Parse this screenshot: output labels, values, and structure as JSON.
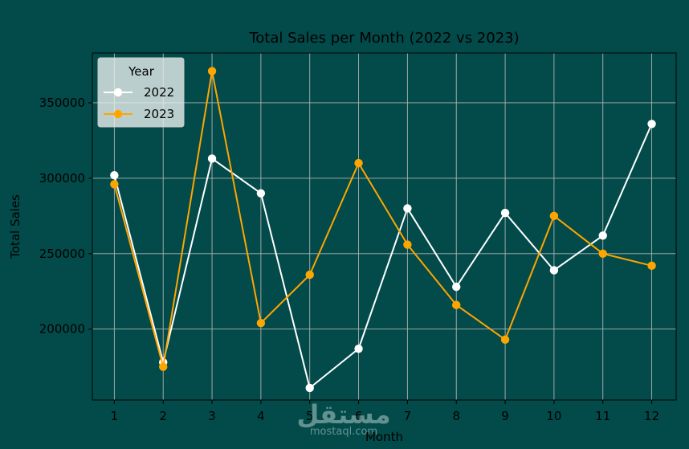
{
  "chart_data": {
    "type": "line",
    "title": "Total Sales per Month (2022 vs 2023)",
    "xlabel": "Month",
    "ylabel": "Total Sales",
    "x": [
      1,
      2,
      3,
      4,
      5,
      6,
      7,
      8,
      9,
      10,
      11,
      12
    ],
    "xlim": [
      0.55,
      12.5
    ],
    "ylim": [
      153000,
      383000
    ],
    "yticks": [
      200000,
      250000,
      300000,
      350000
    ],
    "grid": true,
    "legend": {
      "title": "Year",
      "placement": "top-left"
    },
    "series": [
      {
        "name": "2022",
        "color": "#ffffff",
        "marker": "circle",
        "values": [
          302000,
          178000,
          313000,
          290000,
          161000,
          187000,
          280000,
          228000,
          277000,
          239000,
          262000,
          336000
        ]
      },
      {
        "name": "2023",
        "color": "#ffa500",
        "marker": "circle",
        "values": [
          296000,
          175000,
          371000,
          204000,
          236000,
          310000,
          256000,
          216000,
          193000,
          275000,
          250000,
          242000
        ]
      }
    ]
  },
  "watermark": {
    "arabic": "مستقل",
    "latin": "mostaql.com"
  },
  "colors": {
    "background": "#024b4a",
    "text": "#000000",
    "grid": "#b0b0b0"
  }
}
